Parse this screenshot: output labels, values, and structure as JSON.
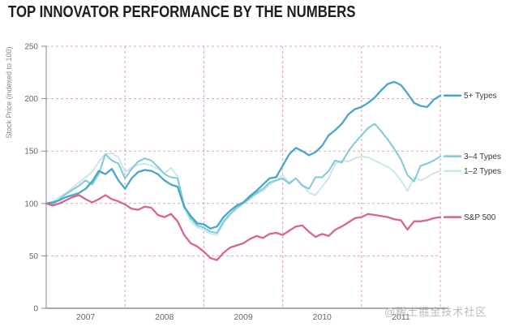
{
  "page": {
    "title": "TOP INNOVATOR PERFORMANCE BY THE NUMBERS",
    "watermark": "@稀土掘金技术社区"
  },
  "colors": {
    "series_5plus": "#47a7c7",
    "series_3_4": "#7ecbd7",
    "series_1_2": "#c9e7ec",
    "series_sp500": "#d9648f",
    "grid_pink": "#ec9fae",
    "grid_gray": "#b5b5b5",
    "axis": "#8a8a8a",
    "tick_text": "#666666",
    "legend_text": "#3a3a3a",
    "title_text": "#1d1d1d"
  },
  "chart_data": {
    "type": "line",
    "title": "TOP INNOVATOR PERFORMANCE BY THE NUMBERS",
    "xlabel": "",
    "ylabel": "Stock Price (indexed to 100)",
    "ylim": [
      0,
      250
    ],
    "yticks": [
      0,
      50,
      100,
      150,
      200,
      250
    ],
    "x_unit": "month",
    "x_range": "Jan 2007 - Jan 2012",
    "xtick_labels": [
      "2007",
      "2008",
      "2009",
      "2010",
      "2011"
    ],
    "grid": {
      "horizontal_dashed_pink_at": [
        50,
        150,
        200,
        250
      ],
      "horizontal_dashed_gray_at": [
        100
      ],
      "vertical_dashed_pink_at_month_index": [
        12,
        24,
        36,
        48,
        60
      ]
    },
    "legend_position": "right-of-plot, aligned to line endpoints",
    "baseline_value": 100,
    "series": [
      {
        "name": "1–2 Types",
        "color": "#c9e7ec",
        "stroke_width": 2,
        "values": [
          100,
          102,
          106,
          110,
          115,
          120,
          125,
          130,
          140,
          147,
          148,
          144,
          130,
          134,
          137,
          138,
          136,
          133,
          129,
          134,
          126,
          95,
          83,
          77,
          75,
          71,
          70,
          81,
          89,
          95,
          100,
          104,
          109,
          112,
          118,
          122,
          127,
          120,
          124,
          118,
          110,
          108,
          116,
          124,
          138,
          141,
          140,
          143,
          145,
          144,
          141,
          138,
          135,
          130,
          122,
          112,
          125,
          122,
          125,
          129,
          131
        ]
      },
      {
        "name": "3–4 Types",
        "color": "#7ecbd7",
        "stroke_width": 2,
        "values": [
          100,
          99,
          104,
          109,
          113,
          117,
          122,
          118,
          128,
          147,
          141,
          138,
          124,
          133,
          140,
          143,
          141,
          135,
          128,
          125,
          124,
          98,
          86,
          79,
          77,
          73,
          72,
          83,
          90,
          96,
          100,
          105,
          110,
          114,
          120,
          122,
          124,
          119,
          124,
          117,
          114,
          125,
          125,
          131,
          141,
          139,
          150,
          158,
          165,
          172,
          176,
          169,
          161,
          152,
          142,
          127,
          121,
          136,
          138,
          141,
          145
        ]
      },
      {
        "name": "5+ Types",
        "color": "#47a7c7",
        "stroke_width": 2.3,
        "values": [
          100,
          101,
          103,
          106,
          108,
          110,
          114,
          121,
          131,
          128,
          133,
          122,
          114,
          124,
          130,
          132,
          131,
          128,
          122,
          118,
          116,
          97,
          88,
          81,
          80,
          76,
          78,
          87,
          93,
          98,
          101,
          107,
          112,
          118,
          124,
          125,
          136,
          147,
          153,
          150,
          146,
          149,
          155,
          165,
          170,
          176,
          185,
          190,
          192,
          196,
          201,
          208,
          214,
          216,
          213,
          205,
          196,
          193,
          192,
          199,
          203
        ]
      },
      {
        "name": "S&P 500",
        "color": "#d9648f",
        "stroke_width": 2.3,
        "values": [
          100,
          98,
          100,
          103,
          106,
          108,
          104,
          101,
          104,
          108,
          104,
          102,
          99,
          95,
          94,
          97,
          96,
          89,
          87,
          90,
          83,
          70,
          62,
          59,
          54,
          48,
          46,
          53,
          58,
          60,
          62,
          66,
          69,
          67,
          71,
          72,
          70,
          74,
          78,
          79,
          73,
          68,
          71,
          69,
          75,
          78,
          82,
          86,
          87,
          90,
          89,
          88,
          87,
          85,
          84,
          75,
          83,
          83,
          84,
          86,
          87
        ]
      }
    ],
    "legend_order_top_to_bottom": [
      "5+ Types",
      "3–4 Types",
      "1–2 Types",
      "S&P 500"
    ]
  }
}
